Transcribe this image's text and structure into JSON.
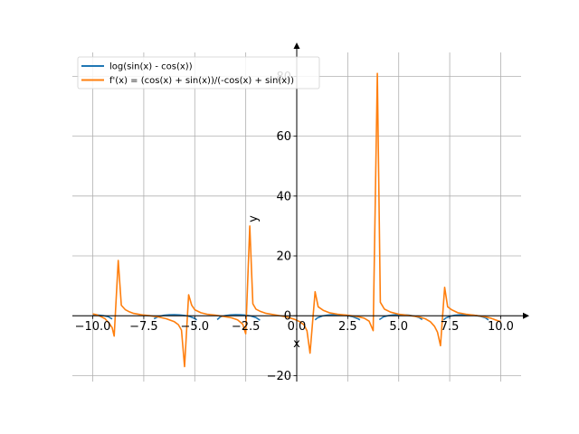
{
  "chart_data": {
    "type": "line",
    "xlabel": "x",
    "ylabel": "y",
    "xlim": [
      -11.0,
      11.0
    ],
    "ylim": [
      -22,
      88
    ],
    "xticks": [
      -10.0,
      -7.5,
      -5.0,
      -2.5,
      0.0,
      2.5,
      5.0,
      7.5,
      10.0
    ],
    "xtick_labels": [
      "−10.0",
      "−7.5",
      "−5.0",
      "−2.5",
      "0.0",
      "2.5",
      "5.0",
      "7.5",
      "10.0"
    ],
    "yticks": [
      -20,
      0,
      20,
      40,
      60,
      80
    ],
    "ytick_labels": [
      "−20",
      "0",
      "20",
      "40",
      "60",
      "80"
    ],
    "grid": true,
    "legend_position": "top-left",
    "series": [
      {
        "name": "log(sin(x) - cos(x))",
        "color": "#1f77b4",
        "segments": [
          [
            [
              -10.0,
              0.32
            ],
            [
              -9.75,
              0.25
            ],
            [
              -9.5,
              0.07
            ],
            [
              -9.25,
              -0.3
            ],
            [
              -9.05,
              -1.1
            ]
          ],
          [
            [
              -7.0,
              -1.0
            ],
            [
              -6.75,
              -0.2
            ],
            [
              -6.5,
              0.15
            ],
            [
              -6.25,
              0.3
            ],
            [
              -6.0,
              0.34
            ],
            [
              -5.75,
              0.28
            ],
            [
              -5.5,
              0.1
            ],
            [
              -5.25,
              -0.25
            ],
            [
              -5.0,
              -0.9
            ],
            [
              -4.9,
              -1.4
            ]
          ],
          [
            [
              -3.9,
              -1.3
            ],
            [
              -3.75,
              -0.4
            ],
            [
              -3.5,
              0.05
            ],
            [
              -3.25,
              0.26
            ],
            [
              -3.0,
              0.34
            ],
            [
              -2.75,
              0.3
            ],
            [
              -2.5,
              0.17
            ],
            [
              -2.25,
              -0.1
            ],
            [
              -2.0,
              -0.6
            ],
            [
              -1.8,
              -1.5
            ]
          ],
          [
            [
              0.9,
              -1.4
            ],
            [
              1.0,
              -0.8
            ],
            [
              1.25,
              -0.1
            ],
            [
              1.5,
              0.2
            ],
            [
              1.75,
              0.33
            ],
            [
              2.0,
              0.32
            ],
            [
              2.25,
              0.22
            ],
            [
              2.5,
              0.02
            ],
            [
              2.75,
              -0.35
            ],
            [
              3.0,
              -1.0
            ],
            [
              3.1,
              -1.4
            ]
          ],
          [
            [
              4.05,
              -1.3
            ],
            [
              4.25,
              -0.4
            ],
            [
              4.5,
              0.05
            ],
            [
              4.75,
              0.26
            ],
            [
              5.0,
              0.34
            ],
            [
              5.25,
              0.3
            ],
            [
              5.5,
              0.17
            ],
            [
              5.75,
              -0.1
            ],
            [
              6.0,
              -0.6
            ],
            [
              6.15,
              -1.3
            ]
          ],
          [
            [
              7.2,
              -1.4
            ],
            [
              7.3,
              -0.8
            ],
            [
              7.5,
              -0.2
            ],
            [
              7.75,
              0.15
            ],
            [
              8.0,
              0.3
            ],
            [
              8.25,
              0.34
            ],
            [
              8.5,
              0.28
            ],
            [
              8.75,
              0.12
            ],
            [
              9.0,
              -0.2
            ],
            [
              9.25,
              -0.7
            ],
            [
              9.4,
              -1.4
            ]
          ]
        ]
      },
      {
        "name": "f'(x) = (cos(x) + sin(x))/(-cos(x) + sin(x))",
        "color": "#ff7f0e",
        "points": [
          [
            -10.0,
            0.6
          ],
          [
            -9.8,
            0.3
          ],
          [
            -9.6,
            -0.3
          ],
          [
            -9.4,
            -1.0
          ],
          [
            -9.2,
            -2.5
          ],
          [
            -9.05,
            -4.0
          ],
          [
            -8.95,
            -6.8
          ],
          [
            -8.75,
            18.5
          ],
          [
            -8.6,
            3.5
          ],
          [
            -8.4,
            2.0
          ],
          [
            -8.2,
            1.3
          ],
          [
            -8.0,
            0.8
          ],
          [
            -7.6,
            0.3
          ],
          [
            -7.2,
            0.0
          ],
          [
            -6.8,
            -0.4
          ],
          [
            -6.4,
            -1.0
          ],
          [
            -6.0,
            -2.0
          ],
          [
            -5.8,
            -3.0
          ],
          [
            -5.65,
            -4.8
          ],
          [
            -5.5,
            -17.0
          ],
          [
            -5.3,
            7.0
          ],
          [
            -5.15,
            3.5
          ],
          [
            -5.0,
            2.0
          ],
          [
            -4.7,
            1.0
          ],
          [
            -4.4,
            0.5
          ],
          [
            -4.0,
            0.2
          ],
          [
            -3.6,
            -0.2
          ],
          [
            -3.2,
            -0.7
          ],
          [
            -2.9,
            -1.4
          ],
          [
            -2.65,
            -2.8
          ],
          [
            -2.5,
            -6.0
          ],
          [
            -2.3,
            30.0
          ],
          [
            -2.15,
            4.0
          ],
          [
            -2.0,
            2.2
          ],
          [
            -1.8,
            1.5
          ],
          [
            -1.5,
            0.8
          ],
          [
            -1.0,
            0.2
          ],
          [
            -0.5,
            -0.4
          ],
          [
            -0.1,
            -1.2
          ],
          [
            0.15,
            -2.0
          ],
          [
            0.35,
            -3.0
          ],
          [
            0.5,
            -5.0
          ],
          [
            0.65,
            -12.5
          ],
          [
            0.9,
            8.0
          ],
          [
            1.05,
            3.0
          ],
          [
            1.3,
            1.8
          ],
          [
            1.6,
            1.0
          ],
          [
            2.0,
            0.5
          ],
          [
            2.5,
            0.15
          ],
          [
            3.0,
            -0.3
          ],
          [
            3.3,
            -0.8
          ],
          [
            3.55,
            -1.8
          ],
          [
            3.75,
            -5.0
          ],
          [
            3.95,
            81.0
          ],
          [
            4.1,
            4.5
          ],
          [
            4.3,
            2.2
          ],
          [
            4.6,
            1.2
          ],
          [
            5.0,
            0.5
          ],
          [
            5.5,
            0.1
          ],
          [
            6.0,
            -0.4
          ],
          [
            6.3,
            -1.0
          ],
          [
            6.55,
            -2.0
          ],
          [
            6.75,
            -3.5
          ],
          [
            6.9,
            -5.5
          ],
          [
            7.05,
            -10.0
          ],
          [
            7.25,
            9.5
          ],
          [
            7.4,
            3.0
          ],
          [
            7.6,
            2.0
          ],
          [
            7.9,
            1.0
          ],
          [
            8.3,
            0.5
          ],
          [
            8.8,
            0.1
          ],
          [
            9.2,
            -0.3
          ],
          [
            9.5,
            -0.8
          ],
          [
            9.8,
            -1.5
          ],
          [
            10.0,
            -2.0
          ]
        ]
      }
    ]
  }
}
